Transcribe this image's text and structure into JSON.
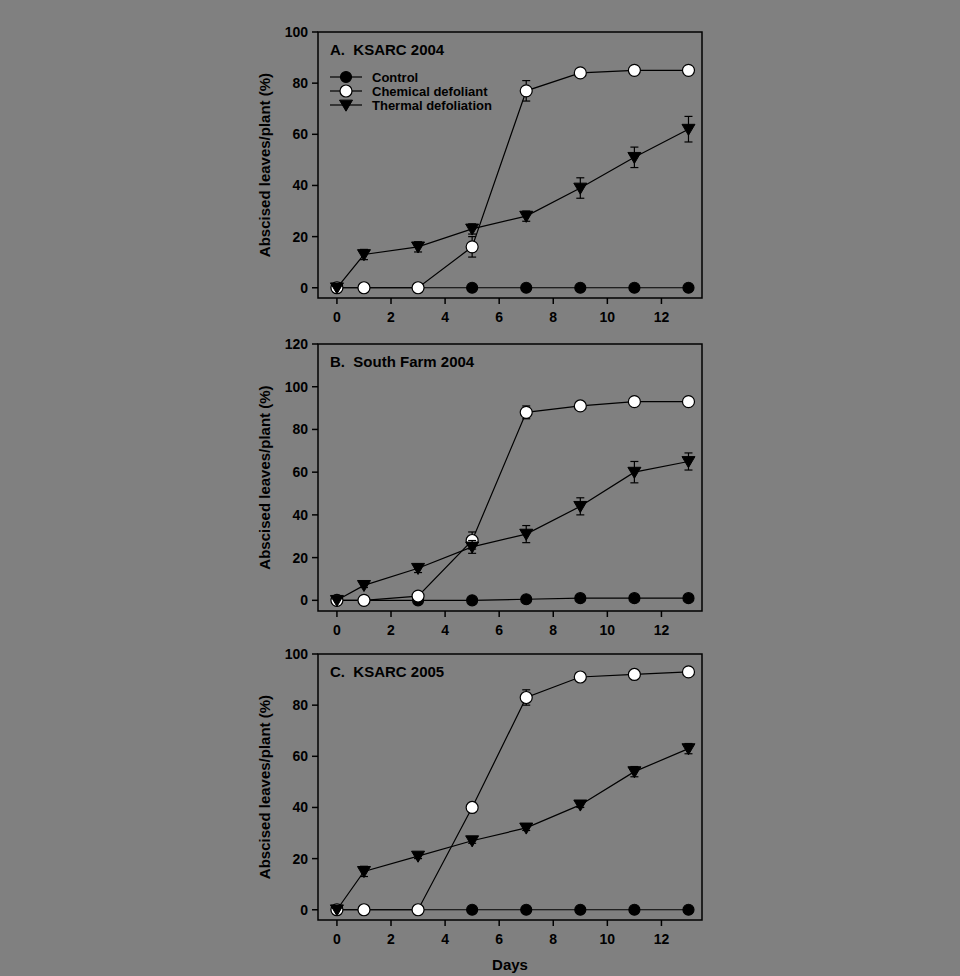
{
  "chart_data": [
    {
      "type": "line",
      "title": "A.  KSARC 2004",
      "y_label": "Abscised leaves/plant (%)",
      "xlim": [
        -0.7,
        13.5
      ],
      "ylim": [
        -4,
        100
      ],
      "xticks": [
        0,
        2,
        4,
        6,
        8,
        10,
        12
      ],
      "yticks": [
        0,
        20,
        40,
        60,
        80,
        100
      ],
      "legend": "upper left",
      "x": [
        0,
        1,
        3,
        5,
        7,
        9,
        11,
        13
      ],
      "series": [
        {
          "name": "Control",
          "color": "#000000",
          "marker": "circle",
          "values": [
            0,
            0,
            0,
            0,
            0,
            0,
            0,
            0
          ],
          "errors": [
            0,
            0,
            0,
            0,
            0,
            0,
            0,
            0
          ]
        },
        {
          "name": "Chemical defoliant",
          "color": "#ffffff",
          "marker": "circle",
          "values": [
            0,
            0,
            0,
            16,
            77,
            84,
            85,
            85
          ],
          "errors": [
            0,
            0,
            0,
            4,
            4,
            1,
            1,
            1
          ]
        },
        {
          "name": "Thermal defoliation",
          "color": "#000000",
          "marker": "triangle-down",
          "values": [
            0,
            13,
            16,
            23,
            28,
            39,
            51,
            62
          ],
          "errors": [
            0,
            2,
            2,
            2,
            2,
            4,
            4,
            5
          ]
        }
      ]
    },
    {
      "type": "line",
      "title": "B.  South Farm 2004",
      "y_label": "Abscised leaves/plant (%)",
      "xlim": [
        -0.7,
        13.5
      ],
      "ylim": [
        -5,
        120
      ],
      "xticks": [
        0,
        2,
        4,
        6,
        8,
        10,
        12
      ],
      "yticks": [
        0,
        20,
        40,
        60,
        80,
        100,
        120
      ],
      "x": [
        0,
        1,
        3,
        5,
        7,
        9,
        11,
        13
      ],
      "series": [
        {
          "name": "Control",
          "color": "#000000",
          "marker": "circle",
          "values": [
            0,
            0,
            0,
            0,
            0.5,
            1,
            1,
            1
          ],
          "errors": [
            0,
            0,
            0,
            0,
            0,
            0,
            0,
            0
          ]
        },
        {
          "name": "Chemical defoliant",
          "color": "#ffffff",
          "marker": "circle",
          "values": [
            0,
            0,
            2,
            28,
            88,
            91,
            93,
            93
          ],
          "errors": [
            0,
            0,
            1,
            4,
            3,
            1,
            1,
            1
          ]
        },
        {
          "name": "Thermal defoliation",
          "color": "#000000",
          "marker": "triangle-down",
          "values": [
            0,
            7,
            15,
            25,
            31,
            44,
            60,
            65
          ],
          "errors": [
            0,
            1,
            2,
            3,
            4,
            4,
            5,
            4
          ]
        }
      ]
    },
    {
      "type": "line",
      "title": "C.  KSARC 2005",
      "y_label": "Abscised leaves/plant (%)",
      "x_label": "Days",
      "xlim": [
        -0.7,
        13.5
      ],
      "ylim": [
        -4,
        100
      ],
      "xticks": [
        0,
        2,
        4,
        6,
        8,
        10,
        12
      ],
      "yticks": [
        0,
        20,
        40,
        60,
        80,
        100
      ],
      "x": [
        0,
        1,
        3,
        5,
        7,
        9,
        11,
        13
      ],
      "series": [
        {
          "name": "Control",
          "color": "#000000",
          "marker": "circle",
          "values": [
            0,
            0,
            0,
            0,
            0,
            0,
            0,
            0
          ],
          "errors": [
            0,
            0,
            0,
            0,
            0,
            0,
            0,
            0
          ]
        },
        {
          "name": "Chemical defoliant",
          "color": "#ffffff",
          "marker": "circle",
          "values": [
            0,
            0,
            0,
            40,
            83,
            91,
            92,
            93
          ],
          "errors": [
            0,
            0,
            0,
            1,
            3,
            1,
            1,
            1
          ]
        },
        {
          "name": "Thermal defoliation",
          "color": "#000000",
          "marker": "triangle-down",
          "values": [
            0,
            15,
            21,
            27,
            32,
            41,
            54,
            63
          ],
          "errors": [
            0,
            2,
            1,
            1,
            1,
            1,
            2,
            2
          ]
        }
      ]
    }
  ]
}
